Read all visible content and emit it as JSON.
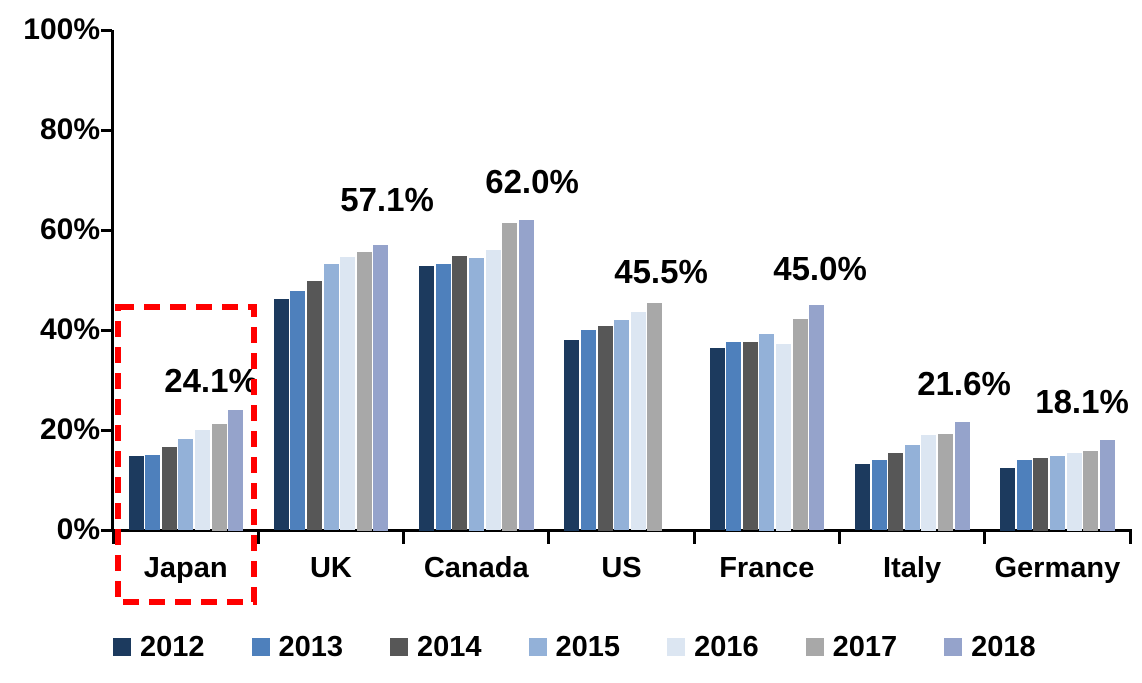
{
  "chart_data": {
    "type": "bar",
    "title": "",
    "categories": [
      "Japan",
      "UK",
      "Canada",
      "US",
      "France",
      "Italy",
      "Germany"
    ],
    "series": [
      {
        "name": "2012",
        "color": "#1C3A5E",
        "values": [
          14.8,
          46.2,
          52.9,
          38.1,
          36.4,
          13.2,
          12.5
        ]
      },
      {
        "name": "2013",
        "color": "#4E80BC",
        "values": [
          15.0,
          47.8,
          53.2,
          40.0,
          37.7,
          14.0,
          14.0
        ]
      },
      {
        "name": "2014",
        "color": "#575757",
        "values": [
          16.6,
          49.8,
          54.8,
          40.9,
          37.6,
          15.5,
          14.5
        ]
      },
      {
        "name": "2015",
        "color": "#93B1D8",
        "values": [
          18.2,
          53.2,
          54.5,
          42.0,
          39.3,
          17.0,
          14.8
        ]
      },
      {
        "name": "2016",
        "color": "#DCE6F2",
        "values": [
          20.0,
          54.6,
          56.0,
          43.6,
          37.3,
          19.1,
          15.5
        ]
      },
      {
        "name": "2017",
        "color": "#A8A8A8",
        "values": [
          21.3,
          55.7,
          61.5,
          45.5,
          42.2,
          19.3,
          15.9
        ]
      },
      {
        "name": "2018",
        "color": "#95A3CB",
        "values": [
          24.1,
          57.1,
          62.0,
          null,
          45.0,
          21.6,
          18.1
        ]
      }
    ],
    "data_labels": [
      "24.1%",
      "57.1%",
      "62.0%",
      "45.5%",
      "45.0%",
      "21.6%",
      "18.1%"
    ],
    "y_axis": {
      "min": 0,
      "max": 100,
      "tick_step": 20,
      "tick_labels": [
        "0%",
        "20%",
        "40%",
        "60%",
        "80%",
        "100%"
      ]
    },
    "x_axis": {
      "labels": [
        "Japan",
        "UK",
        "Canada",
        "US",
        "France",
        "Italy",
        "Germany"
      ]
    },
    "legend_position": "bottom",
    "grid": false,
    "annotation": {
      "type": "dashed-box",
      "target": "Japan",
      "color": "#FF0000"
    }
  }
}
